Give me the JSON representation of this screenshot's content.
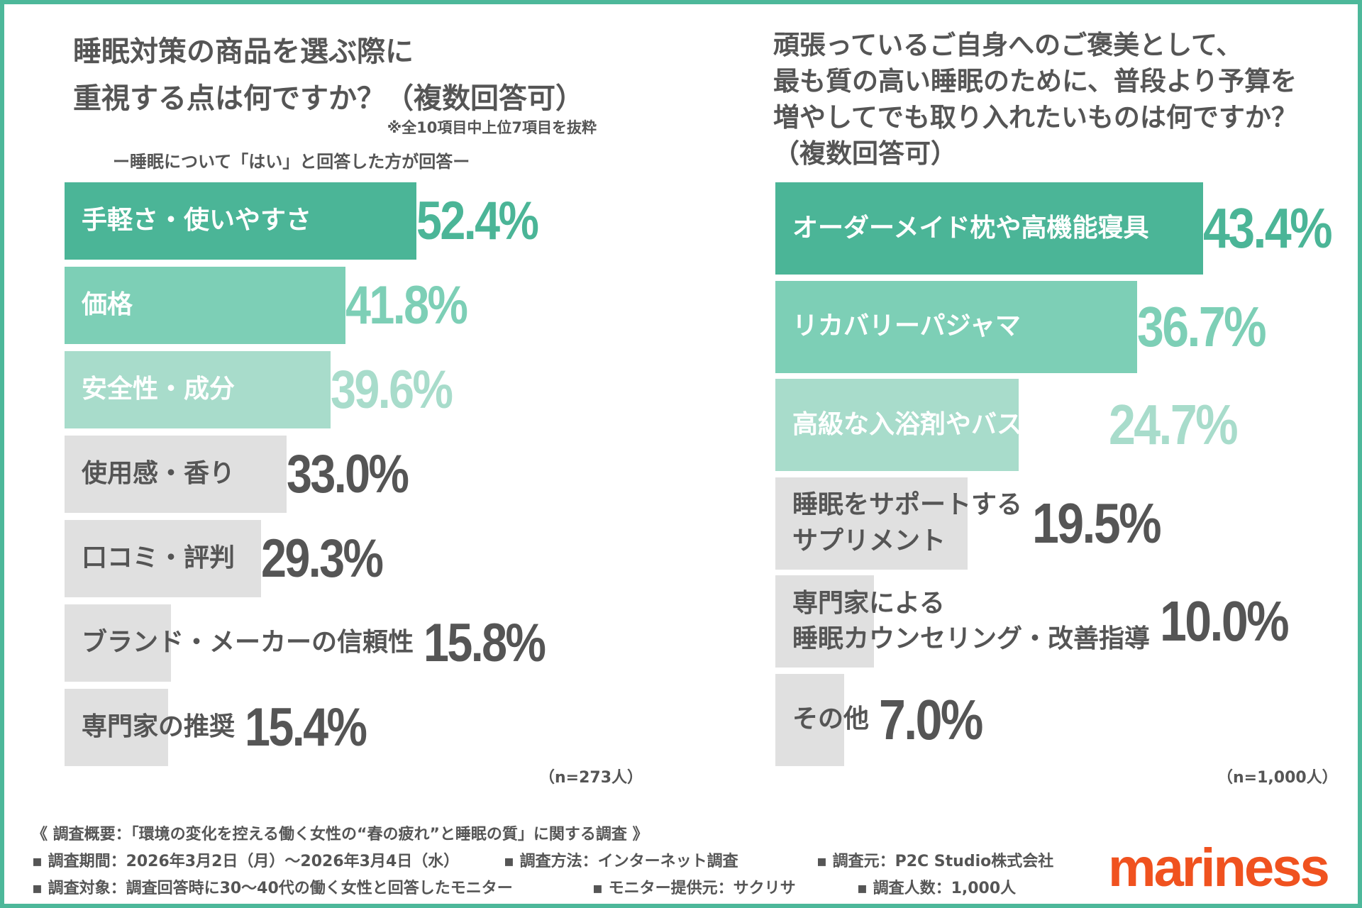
{
  "colors": {
    "frame": "#4db89a",
    "rank1": "#4bb597",
    "rank2": "#7dcfb6",
    "rank3": "#a8dccb",
    "other": "#e0e0e0",
    "text": "#555555",
    "logo": "#f0521f"
  },
  "left": {
    "title_lines": [
      "睡眠対策の商品を選ぶ際に",
      "重視する点は何ですか？（複数回答可）"
    ],
    "note": "※全10項目中上位7項目を抜粋",
    "subtitle": "ー睡眠について「はい」と回答した方が回答ー",
    "n": "（n=273人）"
  },
  "right": {
    "title_lines": [
      "頑張っているご自身へのご褒美として、",
      "最も質の高い睡眠のために、普段より予算を",
      "増やしてでも取り入れたいものは何ですか？",
      "（複数回答可）"
    ],
    "n": "（n=1,000人）"
  },
  "chart_data": [
    {
      "type": "bar",
      "orientation": "horizontal",
      "categories": [
        "手軽さ・使いやすさ",
        "価格",
        "安全性・成分",
        "使用感・香り",
        "口コミ・評判",
        "ブランド・メーカーの信頼性",
        "専門家の推奨"
      ],
      "values": [
        52.4,
        41.8,
        39.6,
        33.0,
        29.3,
        15.8,
        15.4
      ],
      "labels": [
        "52.4%",
        "41.8%",
        "39.6%",
        "33.0%",
        "29.3%",
        "15.8%",
        "15.4%"
      ],
      "unit": "%"
    },
    {
      "type": "bar",
      "orientation": "horizontal",
      "categories": [
        "オーダーメイド枕や高機能寝具",
        "リカバリーパジャマ",
        "高級な入浴剤やバスソルト",
        "睡眠をサポートする\nサプリメント",
        "専門家による\n睡眠カウンセリング・改善指導",
        "その他"
      ],
      "values": [
        43.4,
        36.7,
        24.7,
        19.5,
        10.0,
        7.0
      ],
      "labels": [
        "43.4%",
        "36.7%",
        "24.7%",
        "19.5%",
        "10.0%",
        "7.0%"
      ],
      "unit": "%"
    }
  ],
  "footer": {
    "overview": "《 調査概要：「環境の変化を控える働く女性の“春の疲れ”と睡眠の質」に関する調査 》",
    "period": "▪ 調査期間：2026年3月2日（月）〜2026年3月4日（水）",
    "method": "▪ 調査方法：インターネット調査",
    "source": "▪ 調査元：P2C Studio株式会社",
    "target": "▪ 調査対象：調査回答時に30〜40代の働く女性と回答したモニター",
    "provider": "▪ モニター提供元：サクリサ",
    "count": "▪ 調査人数：1,000人"
  },
  "logo": "mariness"
}
